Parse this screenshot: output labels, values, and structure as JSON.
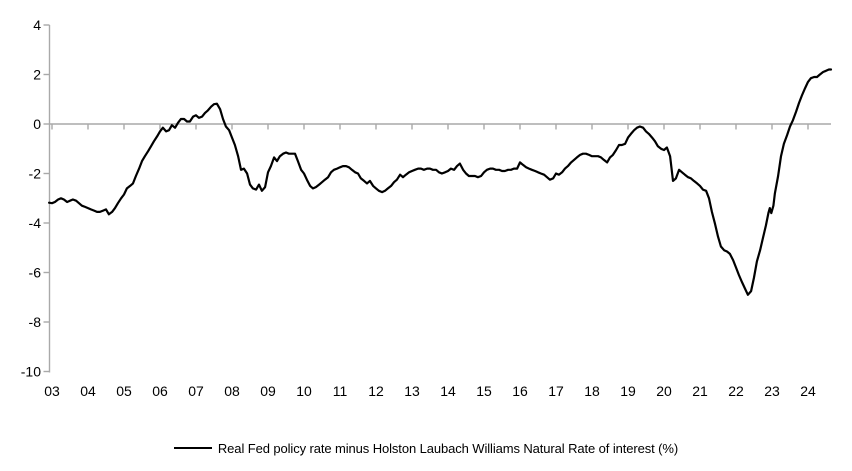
{
  "legend": {
    "label": "Real Fed policy rate minus Holston Laubach Williams Natural Rate of interest (%)"
  },
  "chart_data": {
    "type": "line",
    "title": "",
    "xlabel": "",
    "ylabel": "",
    "ylim": [
      -10,
      4
    ],
    "xlim": [
      2002.9,
      2024.66
    ],
    "grid": false,
    "zero_axis_line": true,
    "legend_position": "bottom-center",
    "axis_color": "#a9a9a9",
    "label_color": "#000000",
    "line_color": "#000000",
    "y_tick_values": [
      4,
      2,
      0,
      -2,
      -4,
      -6,
      -8,
      -10
    ],
    "y_tick_labels": [
      "4",
      "2",
      "0",
      "-2",
      "-4",
      "-6",
      "-8",
      "-10"
    ],
    "x_tick_years": [
      2003,
      2004,
      2005,
      2006,
      2007,
      2008,
      2009,
      2010,
      2011,
      2012,
      2013,
      2014,
      2015,
      2016,
      2017,
      2018,
      2019,
      2020,
      2021,
      2022,
      2023,
      2024
    ],
    "x_tick_labels": [
      "03",
      "04",
      "05",
      "06",
      "07",
      "08",
      "09",
      "10",
      "11",
      "12",
      "13",
      "14",
      "15",
      "16",
      "17",
      "18",
      "19",
      "20",
      "21",
      "22",
      "23",
      "24"
    ],
    "series": [
      {
        "name": "Real Fed policy rate minus Holston Laubach Williams Natural Rate of interest (%)",
        "color": "#000000",
        "points": [
          [
            2002.92,
            -3.18
          ],
          [
            2003.0,
            -3.2
          ],
          [
            2003.08,
            -3.15
          ],
          [
            2003.17,
            -3.05
          ],
          [
            2003.25,
            -3.0
          ],
          [
            2003.33,
            -3.05
          ],
          [
            2003.42,
            -3.15
          ],
          [
            2003.5,
            -3.1
          ],
          [
            2003.58,
            -3.05
          ],
          [
            2003.67,
            -3.1
          ],
          [
            2003.75,
            -3.2
          ],
          [
            2003.83,
            -3.3
          ],
          [
            2003.92,
            -3.35
          ],
          [
            2004.0,
            -3.4
          ],
          [
            2004.08,
            -3.45
          ],
          [
            2004.17,
            -3.5
          ],
          [
            2004.25,
            -3.55
          ],
          [
            2004.33,
            -3.55
          ],
          [
            2004.42,
            -3.5
          ],
          [
            2004.5,
            -3.45
          ],
          [
            2004.58,
            -3.65
          ],
          [
            2004.67,
            -3.55
          ],
          [
            2004.75,
            -3.4
          ],
          [
            2004.83,
            -3.2
          ],
          [
            2004.92,
            -3.0
          ],
          [
            2005.0,
            -2.85
          ],
          [
            2005.08,
            -2.6
          ],
          [
            2005.17,
            -2.5
          ],
          [
            2005.25,
            -2.4
          ],
          [
            2005.33,
            -2.1
          ],
          [
            2005.42,
            -1.8
          ],
          [
            2005.5,
            -1.5
          ],
          [
            2005.58,
            -1.3
          ],
          [
            2005.67,
            -1.1
          ],
          [
            2005.75,
            -0.9
          ],
          [
            2005.83,
            -0.7
          ],
          [
            2005.92,
            -0.5
          ],
          [
            2006.0,
            -0.3
          ],
          [
            2006.08,
            -0.15
          ],
          [
            2006.17,
            -0.3
          ],
          [
            2006.25,
            -0.25
          ],
          [
            2006.33,
            -0.05
          ],
          [
            2006.42,
            -0.15
          ],
          [
            2006.5,
            0.05
          ],
          [
            2006.58,
            0.2
          ],
          [
            2006.67,
            0.2
          ],
          [
            2006.75,
            0.1
          ],
          [
            2006.83,
            0.1
          ],
          [
            2006.92,
            0.3
          ],
          [
            2007.0,
            0.35
          ],
          [
            2007.08,
            0.25
          ],
          [
            2007.17,
            0.3
          ],
          [
            2007.25,
            0.45
          ],
          [
            2007.33,
            0.55
          ],
          [
            2007.42,
            0.7
          ],
          [
            2007.5,
            0.8
          ],
          [
            2007.58,
            0.82
          ],
          [
            2007.67,
            0.6
          ],
          [
            2007.75,
            0.2
          ],
          [
            2007.83,
            -0.1
          ],
          [
            2007.92,
            -0.25
          ],
          [
            2008.0,
            -0.55
          ],
          [
            2008.08,
            -0.85
          ],
          [
            2008.17,
            -1.3
          ],
          [
            2008.25,
            -1.85
          ],
          [
            2008.33,
            -1.8
          ],
          [
            2008.42,
            -2.0
          ],
          [
            2008.5,
            -2.45
          ],
          [
            2008.58,
            -2.6
          ],
          [
            2008.67,
            -2.65
          ],
          [
            2008.75,
            -2.45
          ],
          [
            2008.83,
            -2.7
          ],
          [
            2008.92,
            -2.55
          ],
          [
            2009.0,
            -1.95
          ],
          [
            2009.08,
            -1.7
          ],
          [
            2009.17,
            -1.35
          ],
          [
            2009.25,
            -1.5
          ],
          [
            2009.33,
            -1.3
          ],
          [
            2009.42,
            -1.2
          ],
          [
            2009.5,
            -1.15
          ],
          [
            2009.58,
            -1.2
          ],
          [
            2009.67,
            -1.2
          ],
          [
            2009.75,
            -1.2
          ],
          [
            2009.83,
            -1.5
          ],
          [
            2009.92,
            -1.85
          ],
          [
            2010.0,
            -2.0
          ],
          [
            2010.08,
            -2.25
          ],
          [
            2010.17,
            -2.5
          ],
          [
            2010.25,
            -2.6
          ],
          [
            2010.33,
            -2.55
          ],
          [
            2010.42,
            -2.45
          ],
          [
            2010.5,
            -2.35
          ],
          [
            2010.58,
            -2.25
          ],
          [
            2010.67,
            -2.15
          ],
          [
            2010.75,
            -1.95
          ],
          [
            2010.83,
            -1.85
          ],
          [
            2010.92,
            -1.8
          ],
          [
            2011.0,
            -1.75
          ],
          [
            2011.08,
            -1.7
          ],
          [
            2011.17,
            -1.7
          ],
          [
            2011.25,
            -1.75
          ],
          [
            2011.33,
            -1.85
          ],
          [
            2011.42,
            -1.95
          ],
          [
            2011.5,
            -2.0
          ],
          [
            2011.58,
            -2.2
          ],
          [
            2011.67,
            -2.3
          ],
          [
            2011.75,
            -2.4
          ],
          [
            2011.83,
            -2.3
          ],
          [
            2011.92,
            -2.5
          ],
          [
            2012.0,
            -2.6
          ],
          [
            2012.08,
            -2.7
          ],
          [
            2012.17,
            -2.75
          ],
          [
            2012.25,
            -2.7
          ],
          [
            2012.33,
            -2.6
          ],
          [
            2012.42,
            -2.5
          ],
          [
            2012.5,
            -2.35
          ],
          [
            2012.58,
            -2.25
          ],
          [
            2012.67,
            -2.05
          ],
          [
            2012.75,
            -2.15
          ],
          [
            2012.83,
            -2.05
          ],
          [
            2012.92,
            -1.95
          ],
          [
            2013.0,
            -1.9
          ],
          [
            2013.08,
            -1.85
          ],
          [
            2013.17,
            -1.8
          ],
          [
            2013.25,
            -1.8
          ],
          [
            2013.33,
            -1.85
          ],
          [
            2013.42,
            -1.8
          ],
          [
            2013.5,
            -1.8
          ],
          [
            2013.58,
            -1.85
          ],
          [
            2013.67,
            -1.85
          ],
          [
            2013.75,
            -1.95
          ],
          [
            2013.83,
            -2.0
          ],
          [
            2013.92,
            -1.95
          ],
          [
            2014.0,
            -1.9
          ],
          [
            2014.08,
            -1.8
          ],
          [
            2014.17,
            -1.85
          ],
          [
            2014.25,
            -1.7
          ],
          [
            2014.33,
            -1.6
          ],
          [
            2014.42,
            -1.85
          ],
          [
            2014.5,
            -2.0
          ],
          [
            2014.58,
            -2.1
          ],
          [
            2014.67,
            -2.1
          ],
          [
            2014.75,
            -2.1
          ],
          [
            2014.83,
            -2.15
          ],
          [
            2014.92,
            -2.1
          ],
          [
            2015.0,
            -1.95
          ],
          [
            2015.08,
            -1.85
          ],
          [
            2015.17,
            -1.8
          ],
          [
            2015.25,
            -1.8
          ],
          [
            2015.33,
            -1.85
          ],
          [
            2015.42,
            -1.85
          ],
          [
            2015.5,
            -1.9
          ],
          [
            2015.58,
            -1.9
          ],
          [
            2015.67,
            -1.85
          ],
          [
            2015.75,
            -1.85
          ],
          [
            2015.83,
            -1.8
          ],
          [
            2015.92,
            -1.8
          ],
          [
            2016.0,
            -1.55
          ],
          [
            2016.08,
            -1.65
          ],
          [
            2016.17,
            -1.75
          ],
          [
            2016.25,
            -1.8
          ],
          [
            2016.33,
            -1.85
          ],
          [
            2016.42,
            -1.9
          ],
          [
            2016.5,
            -1.95
          ],
          [
            2016.58,
            -2.0
          ],
          [
            2016.67,
            -2.05
          ],
          [
            2016.75,
            -2.15
          ],
          [
            2016.83,
            -2.25
          ],
          [
            2016.92,
            -2.2
          ],
          [
            2017.0,
            -2.0
          ],
          [
            2017.08,
            -2.05
          ],
          [
            2017.17,
            -1.95
          ],
          [
            2017.25,
            -1.8
          ],
          [
            2017.33,
            -1.7
          ],
          [
            2017.42,
            -1.55
          ],
          [
            2017.5,
            -1.45
          ],
          [
            2017.58,
            -1.35
          ],
          [
            2017.67,
            -1.25
          ],
          [
            2017.75,
            -1.2
          ],
          [
            2017.83,
            -1.2
          ],
          [
            2017.92,
            -1.25
          ],
          [
            2018.0,
            -1.3
          ],
          [
            2018.08,
            -1.3
          ],
          [
            2018.17,
            -1.3
          ],
          [
            2018.25,
            -1.35
          ],
          [
            2018.33,
            -1.45
          ],
          [
            2018.42,
            -1.55
          ],
          [
            2018.5,
            -1.35
          ],
          [
            2018.58,
            -1.25
          ],
          [
            2018.67,
            -1.05
          ],
          [
            2018.75,
            -0.85
          ],
          [
            2018.83,
            -0.85
          ],
          [
            2018.92,
            -0.8
          ],
          [
            2019.0,
            -0.55
          ],
          [
            2019.08,
            -0.4
          ],
          [
            2019.17,
            -0.25
          ],
          [
            2019.25,
            -0.15
          ],
          [
            2019.33,
            -0.1
          ],
          [
            2019.42,
            -0.15
          ],
          [
            2019.5,
            -0.3
          ],
          [
            2019.58,
            -0.4
          ],
          [
            2019.67,
            -0.55
          ],
          [
            2019.75,
            -0.7
          ],
          [
            2019.83,
            -0.9
          ],
          [
            2019.92,
            -1.0
          ],
          [
            2020.0,
            -1.05
          ],
          [
            2020.08,
            -0.95
          ],
          [
            2020.17,
            -1.3
          ],
          [
            2020.25,
            -2.3
          ],
          [
            2020.33,
            -2.2
          ],
          [
            2020.42,
            -1.85
          ],
          [
            2020.5,
            -1.95
          ],
          [
            2020.58,
            -2.05
          ],
          [
            2020.67,
            -2.15
          ],
          [
            2020.75,
            -2.2
          ],
          [
            2020.83,
            -2.3
          ],
          [
            2020.92,
            -2.4
          ],
          [
            2021.0,
            -2.5
          ],
          [
            2021.08,
            -2.65
          ],
          [
            2021.17,
            -2.7
          ],
          [
            2021.25,
            -3.0
          ],
          [
            2021.33,
            -3.55
          ],
          [
            2021.42,
            -4.05
          ],
          [
            2021.5,
            -4.55
          ],
          [
            2021.58,
            -4.95
          ],
          [
            2021.67,
            -5.1
          ],
          [
            2021.75,
            -5.15
          ],
          [
            2021.83,
            -5.25
          ],
          [
            2021.92,
            -5.5
          ],
          [
            2022.0,
            -5.8
          ],
          [
            2022.08,
            -6.1
          ],
          [
            2022.17,
            -6.4
          ],
          [
            2022.25,
            -6.65
          ],
          [
            2022.33,
            -6.9
          ],
          [
            2022.42,
            -6.75
          ],
          [
            2022.5,
            -6.2
          ],
          [
            2022.58,
            -5.55
          ],
          [
            2022.67,
            -5.1
          ],
          [
            2022.75,
            -4.6
          ],
          [
            2022.83,
            -4.1
          ],
          [
            2022.9,
            -3.6
          ],
          [
            2022.94,
            -3.4
          ],
          [
            2022.98,
            -3.6
          ],
          [
            2023.04,
            -3.3
          ],
          [
            2023.08,
            -2.8
          ],
          [
            2023.17,
            -2.1
          ],
          [
            2023.25,
            -1.3
          ],
          [
            2023.33,
            -0.8
          ],
          [
            2023.42,
            -0.45
          ],
          [
            2023.5,
            -0.1
          ],
          [
            2023.58,
            0.15
          ],
          [
            2023.67,
            0.5
          ],
          [
            2023.75,
            0.85
          ],
          [
            2023.83,
            1.15
          ],
          [
            2023.92,
            1.45
          ],
          [
            2024.0,
            1.7
          ],
          [
            2024.08,
            1.85
          ],
          [
            2024.17,
            1.9
          ],
          [
            2024.25,
            1.9
          ],
          [
            2024.33,
            2.0
          ],
          [
            2024.42,
            2.1
          ],
          [
            2024.5,
            2.15
          ],
          [
            2024.58,
            2.2
          ],
          [
            2024.64,
            2.2
          ]
        ]
      }
    ]
  }
}
